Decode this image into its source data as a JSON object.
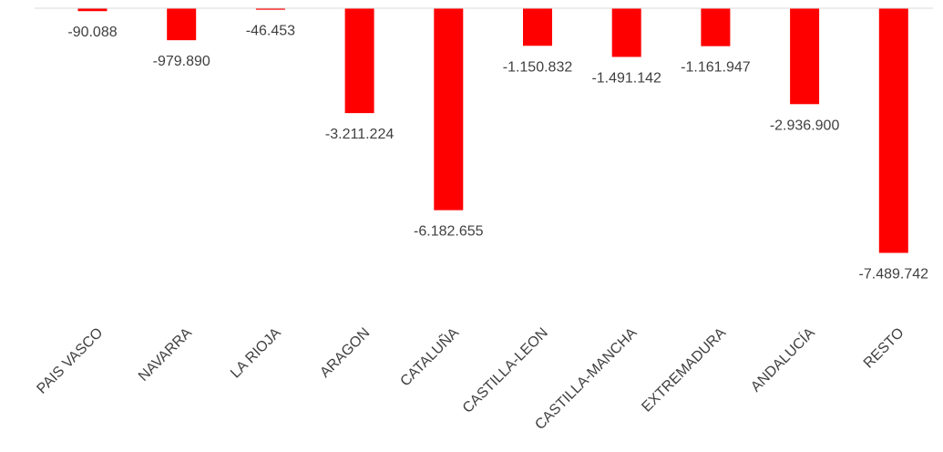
{
  "chart_data": {
    "type": "bar",
    "title": "",
    "xlabel": "",
    "ylabel": "",
    "categories": [
      "PAIS VASCO",
      "NAVARRA",
      "LA RIOJA",
      "ARAGON",
      "CATALUÑA",
      "CASTILLA-LEON",
      "CASTILLA-MANCHA",
      "EXTREMADURA",
      "ANDALUCÍA",
      "RESTO"
    ],
    "values": [
      -90088,
      -979890,
      -46453,
      -3211224,
      -6182655,
      -1150832,
      -1491142,
      -1161947,
      -2936900,
      -7489742
    ],
    "value_labels": [
      "-90.088",
      "-979.890",
      "-46.453",
      "-3.211.224",
      "-6.182.655",
      "-1.150.832",
      "-1.491.142",
      "-1.161.947",
      "-2.936.900",
      "-7.489.742"
    ],
    "bar_color": "#ff0000",
    "axis_color": "#d9d9d9",
    "ylim": [
      -7500000,
      0
    ],
    "grid": false,
    "legend": "none"
  }
}
